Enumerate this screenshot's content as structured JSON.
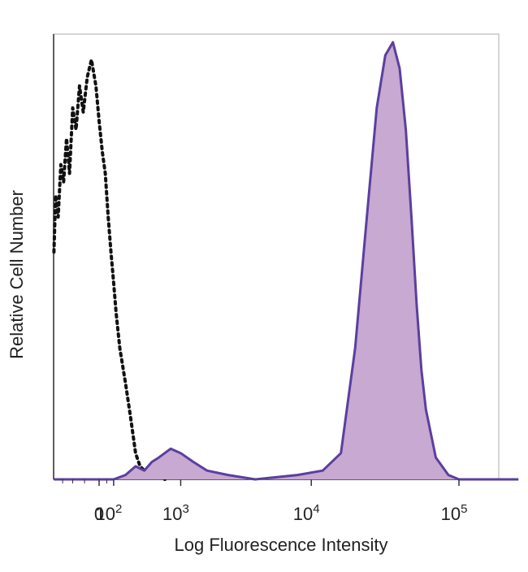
{
  "chart_data": {
    "type": "area",
    "title": "",
    "xlabel": "Log Fluorescence Intensity",
    "ylabel": "Relative Cell Number",
    "xscale": "biexponential",
    "xlim": [
      -400,
      250000
    ],
    "ylim": [
      0,
      100
    ],
    "grid": false,
    "legend": "none",
    "x_ticks": [
      {
        "value": 0,
        "base": "0",
        "exp": ""
      },
      {
        "value": 100,
        "base": "10",
        "exp": "2"
      },
      {
        "value": 1000,
        "base": "10",
        "exp": "3"
      },
      {
        "value": 10000,
        "base": "10",
        "exp": "4"
      },
      {
        "value": 100000,
        "base": "10",
        "exp": "5"
      }
    ],
    "series": [
      {
        "style": "dotted",
        "color": "#111111",
        "x": [
          -400,
          -380,
          -350,
          -320,
          -290,
          -260,
          -230,
          -200,
          -170,
          -140,
          -110,
          -80,
          -50,
          -20,
          0,
          20,
          40,
          60,
          80,
          100,
          120,
          150,
          200,
          250,
          300,
          350,
          400,
          500,
          700
        ],
        "y": [
          52,
          65,
          60,
          72,
          68,
          78,
          70,
          85,
          80,
          90,
          84,
          92,
          96,
          90,
          82,
          75,
          70,
          60,
          52,
          45,
          38,
          30,
          22,
          14,
          6,
          3,
          2,
          1,
          0
        ]
      },
      {
        "style": "solid-filled",
        "color": "#5b3f9e",
        "fill": "#c7a9d1",
        "x": [
          -400,
          100,
          200,
          300,
          400,
          500,
          600,
          800,
          1000,
          1300,
          1700,
          2500,
          4000,
          8000,
          12000,
          16000,
          20000,
          24000,
          28000,
          32000,
          36000,
          40000,
          44000,
          48000,
          52000,
          56000,
          60000,
          70000,
          85000,
          100000,
          250000
        ],
        "y": [
          0,
          0,
          1,
          3,
          2,
          4,
          5,
          7,
          6,
          4,
          2,
          1,
          0,
          1,
          2,
          6,
          30,
          60,
          85,
          97,
          100,
          94,
          80,
          60,
          40,
          25,
          16,
          5,
          1,
          0,
          0
        ]
      }
    ]
  }
}
